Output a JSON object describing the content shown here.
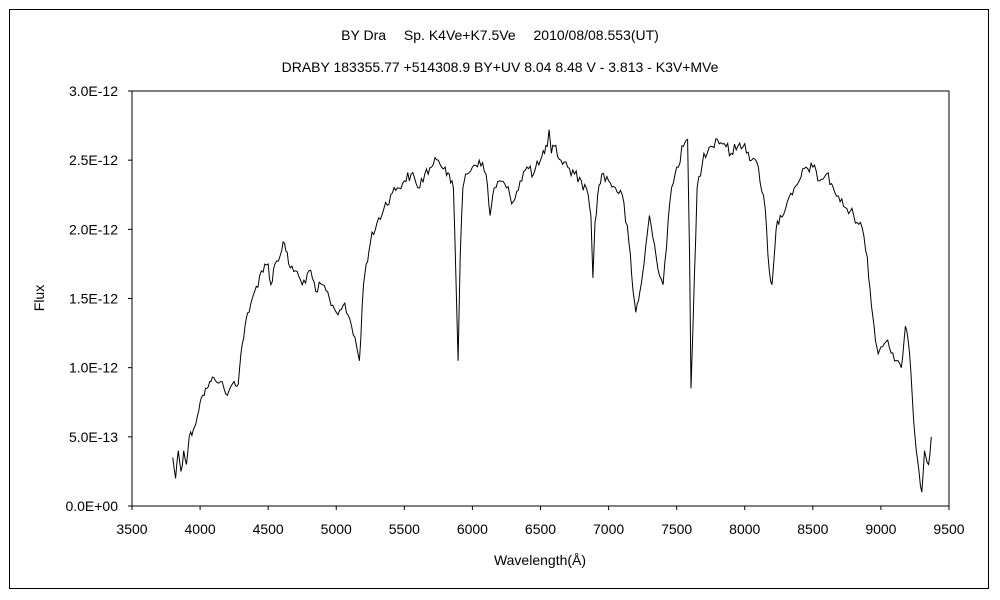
{
  "chart_data": {
    "type": "line",
    "title": "BY Dra　 Sp. K4Ve+K7.5Ve　 2010/08/08.553(UT)",
    "subtitle": "DRABY 183355.77 +514308.9 BY+UV 8.04 8.48 V - 3.813 - K3V+MVe",
    "xlabel": "Wavelength(Å)",
    "ylabel": "Flux",
    "xlim": [
      3500,
      9500
    ],
    "ylim": [
      0,
      3e-12
    ],
    "x_ticks": [
      "3500",
      "4000",
      "4500",
      "5000",
      "5500",
      "6000",
      "6500",
      "7000",
      "7500",
      "8000",
      "8500",
      "9000",
      "9500"
    ],
    "y_ticks": [
      "0.0E+00",
      "5.0E-13",
      "1.0E-12",
      "1.5E-12",
      "2.0E-12",
      "2.5E-12",
      "3.0E-12"
    ],
    "grid": false,
    "legend": "none",
    "line_color": "#000000",
    "series": [
      {
        "x": [
          3800,
          3820,
          3840,
          3860,
          3880,
          3900,
          3920,
          3950,
          3980,
          4000,
          4020,
          4050,
          4080,
          4100,
          4150,
          4200,
          4250,
          4280,
          4300,
          4330,
          4360,
          4400,
          4450,
          4500,
          4520,
          4550,
          4600,
          4620,
          4650,
          4700,
          4750,
          4800,
          4850,
          4900,
          4950,
          5000,
          5050,
          5100,
          5150,
          5170,
          5200,
          5220,
          5250,
          5300,
          5350,
          5400,
          5450,
          5500,
          5550,
          5600,
          5650,
          5700,
          5750,
          5800,
          5830,
          5860,
          5880,
          5895,
          5910,
          5930,
          5950,
          6000,
          6050,
          6100,
          6130,
          6160,
          6200,
          6250,
          6300,
          6350,
          6400,
          6450,
          6500,
          6530,
          6550,
          6563,
          6580,
          6600,
          6650,
          6700,
          6750,
          6800,
          6850,
          6870,
          6885,
          6900,
          6920,
          6950,
          7000,
          7050,
          7100,
          7150,
          7180,
          7200,
          7230,
          7260,
          7300,
          7350,
          7400,
          7450,
          7500,
          7550,
          7580,
          7595,
          7605,
          7620,
          7650,
          7700,
          7750,
          7800,
          7850,
          7900,
          7950,
          8000,
          8050,
          8100,
          8150,
          8180,
          8200,
          8230,
          8260,
          8300,
          8350,
          8400,
          8450,
          8500,
          8550,
          8600,
          8650,
          8700,
          8750,
          8800,
          8850,
          8900,
          8930,
          8950,
          8980,
          9000,
          9050,
          9100,
          9150,
          9180,
          9200,
          9230,
          9250,
          9280,
          9300,
          9320,
          9350,
          9370
        ],
        "y": [
          3.5e-13,
          2e-13,
          4e-13,
          2.5e-13,
          4e-13,
          3e-13,
          5e-13,
          5.5e-13,
          6.5e-13,
          7.5e-13,
          8e-13,
          8.5e-13,
          9e-13,
          9.3e-13,
          9e-13,
          8e-13,
          9e-13,
          8.8e-13,
          1.1e-12,
          1.3e-12,
          1.4e-12,
          1.55e-12,
          1.7e-12,
          1.75e-12,
          1.6e-12,
          1.75e-12,
          1.85e-12,
          1.9e-12,
          1.75e-12,
          1.7e-12,
          1.6e-12,
          1.7e-12,
          1.55e-12,
          1.6e-12,
          1.5e-12,
          1.4e-12,
          1.45e-12,
          1.35e-12,
          1.15e-12,
          1.05e-12,
          1.6e-12,
          1.75e-12,
          1.9e-12,
          2.05e-12,
          2.15e-12,
          2.25e-12,
          2.3e-12,
          2.35e-12,
          2.4e-12,
          2.3e-12,
          2.4e-12,
          2.45e-12,
          2.5e-12,
          2.45e-12,
          2.4e-12,
          2.3e-12,
          1.6e-12,
          1.05e-12,
          1.8e-12,
          2.3e-12,
          2.4e-12,
          2.45e-12,
          2.5e-12,
          2.4e-12,
          2.1e-12,
          2.3e-12,
          2.35e-12,
          2.3e-12,
          2.2e-12,
          2.35e-12,
          2.45e-12,
          2.4e-12,
          2.5e-12,
          2.55e-12,
          2.6e-12,
          2.72e-12,
          2.55e-12,
          2.6e-12,
          2.5e-12,
          2.45e-12,
          2.4e-12,
          2.35e-12,
          2.25e-12,
          2.1e-12,
          1.65e-12,
          2.05e-12,
          2.25e-12,
          2.4e-12,
          2.35e-12,
          2.3e-12,
          2.25e-12,
          1.9e-12,
          1.55e-12,
          1.4e-12,
          1.55e-12,
          1.75e-12,
          2.1e-12,
          1.8e-12,
          1.6e-12,
          2.2e-12,
          2.45e-12,
          2.6e-12,
          2.65e-12,
          1.8e-12,
          8.5e-13,
          1.3e-12,
          2.3e-12,
          2.55e-12,
          2.6e-12,
          2.65e-12,
          2.62e-12,
          2.55e-12,
          2.6e-12,
          2.62e-12,
          2.5e-12,
          2.45e-12,
          2.15e-12,
          1.7e-12,
          1.6e-12,
          2e-12,
          2.1e-12,
          2.15e-12,
          2.25e-12,
          2.35e-12,
          2.45e-12,
          2.45e-12,
          2.35e-12,
          2.4e-12,
          2.3e-12,
          2.2e-12,
          2.15e-12,
          2.1e-12,
          2.05e-12,
          1.8e-12,
          1.45e-12,
          1.3e-12,
          1.1e-12,
          1.15e-12,
          1.2e-12,
          1.05e-12,
          1e-12,
          1.3e-12,
          1.2e-12,
          8e-13,
          5e-13,
          2.5e-13,
          1e-13,
          4e-13,
          3e-13,
          5e-13
        ]
      }
    ]
  }
}
